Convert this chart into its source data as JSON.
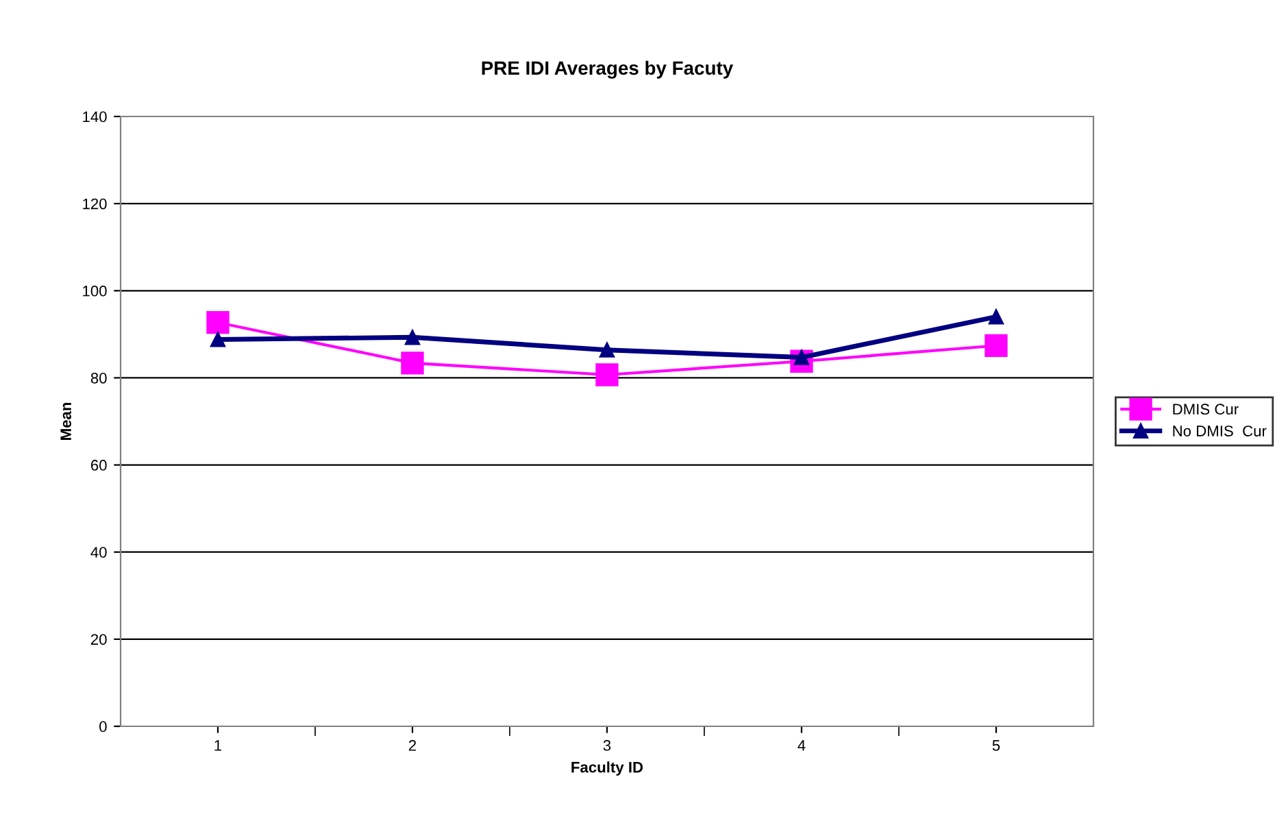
{
  "chart_data": {
    "type": "line",
    "title": "PRE IDI Averages by Facuty",
    "xlabel": "Faculty ID",
    "ylabel": "Mean",
    "categories": [
      "1",
      "2",
      "3",
      "4",
      "5"
    ],
    "series": [
      {
        "name": "DMIS Cur",
        "color": "#ff00ff",
        "marker": "square",
        "values": [
          92.7,
          83.4,
          80.7,
          83.8,
          87.4
        ]
      },
      {
        "name": "No DMIS  Cur",
        "color": "#000080",
        "marker": "triangle",
        "values": [
          88.8,
          89.3,
          86.4,
          84.7,
          94.0
        ]
      }
    ],
    "ylim": [
      0,
      140
    ],
    "yticks": [
      0,
      20,
      40,
      60,
      80,
      100,
      120,
      140
    ],
    "grid": "y",
    "legend": "right",
    "line_style": "solid"
  }
}
